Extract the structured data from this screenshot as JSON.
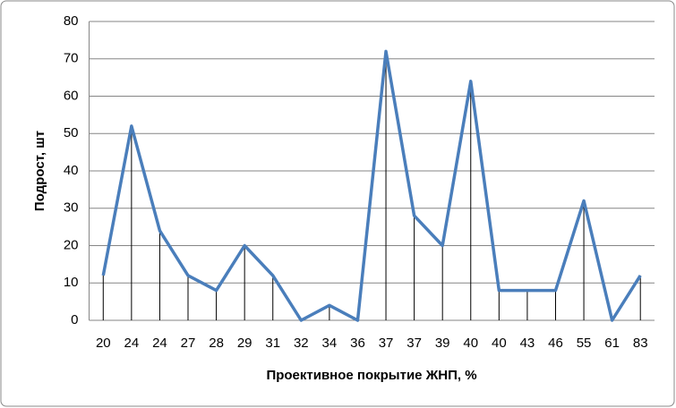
{
  "chart_data": {
    "type": "line",
    "x_label": "Проективное покрытие ЖНП, %",
    "y_label": "Подрост, шт",
    "categories": [
      "20",
      "24",
      "24",
      "27",
      "28",
      "29",
      "31",
      "32",
      "34",
      "36",
      "37",
      "37",
      "39",
      "40",
      "40",
      "43",
      "46",
      "55",
      "61",
      "83"
    ],
    "values": [
      12,
      52,
      24,
      12,
      8,
      20,
      12,
      0,
      4,
      0,
      72,
      28,
      20,
      64,
      8,
      8,
      8,
      32,
      0,
      12
    ],
    "color": "#4a7ebb",
    "drop_lines": true,
    "ylim": [
      0,
      80
    ],
    "yticks": [
      0,
      10,
      20,
      30,
      40,
      50,
      60,
      70,
      80
    ],
    "grid": true
  }
}
